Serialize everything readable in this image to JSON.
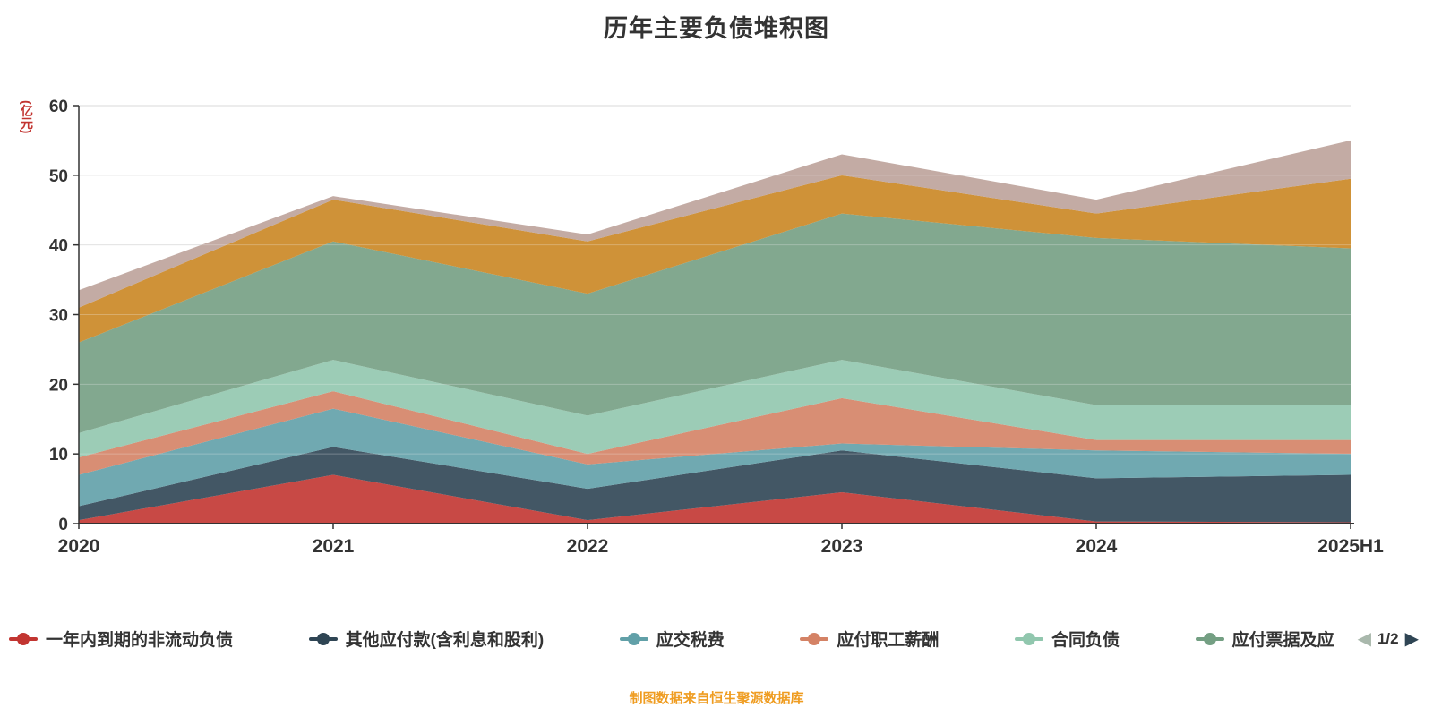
{
  "chart_data": {
    "type": "area",
    "stacked": true,
    "title": "历年主要负债堆积图",
    "ylabel": "(亿元)",
    "xlabel": "",
    "x": [
      "2020",
      "2021",
      "2022",
      "2023",
      "2024",
      "2025H1"
    ],
    "ylim": [
      0,
      60
    ],
    "yticks": [
      0,
      10,
      20,
      30,
      40,
      50,
      60
    ],
    "grid": true,
    "legend_position": "bottom",
    "series": [
      {
        "name": "一年内到期的非流动负债",
        "color": "#c23531",
        "values": [
          0.5,
          7.0,
          0.5,
          4.5,
          0.3,
          0.2
        ]
      },
      {
        "name": "其他应付款(含利息和股利)",
        "color": "#2f4554",
        "values": [
          2.0,
          4.0,
          4.5,
          6.0,
          6.2,
          6.8
        ]
      },
      {
        "name": "应交税费",
        "color": "#61a0a8",
        "values": [
          4.5,
          5.5,
          3.5,
          1.0,
          4.0,
          3.0
        ]
      },
      {
        "name": "应付职工薪酬",
        "color": "#d48265",
        "values": [
          2.5,
          2.5,
          1.5,
          6.5,
          1.5,
          2.0
        ]
      },
      {
        "name": "合同负债",
        "color": "#91c7ae",
        "values": [
          3.5,
          4.5,
          5.5,
          5.5,
          5.0,
          5.0
        ]
      },
      {
        "name": "应付票据及应",
        "color": "#749f83",
        "values": [
          13.0,
          17.0,
          17.5,
          21.0,
          24.0,
          22.5
        ]
      },
      {
        "name": "",
        "color": "#ca8622",
        "values": [
          5.0,
          6.0,
          7.5,
          5.5,
          3.5,
          10.0
        ]
      },
      {
        "name": "",
        "color": "#bda29a",
        "values": [
          2.5,
          0.5,
          1.0,
          3.0,
          2.0,
          5.5
        ]
      }
    ]
  },
  "legend": {
    "visible_items": [
      {
        "label": "一年内到期的非流动负债",
        "color": "#c23531"
      },
      {
        "label": "其他应付款(含利息和股利)",
        "color": "#2f4554"
      },
      {
        "label": "应交税费",
        "color": "#61a0a8"
      },
      {
        "label": "应付职工薪酬",
        "color": "#d48265"
      },
      {
        "label": "合同负债",
        "color": "#91c7ae"
      },
      {
        "label": "应付票据及应",
        "color": "#749f83"
      }
    ],
    "pagination": "1/2"
  },
  "icons": {
    "prev": "◀",
    "next": "▶"
  },
  "footer": "制图数据来自恒生聚源数据库",
  "colors": {
    "title": "#333333",
    "axis": "#333333",
    "grid": "#d8d8d8",
    "y_unit": "#c23531",
    "footer": "#ef9c20",
    "pager_prev": "#a9b8ac",
    "pager_next": "#2f4554"
  }
}
